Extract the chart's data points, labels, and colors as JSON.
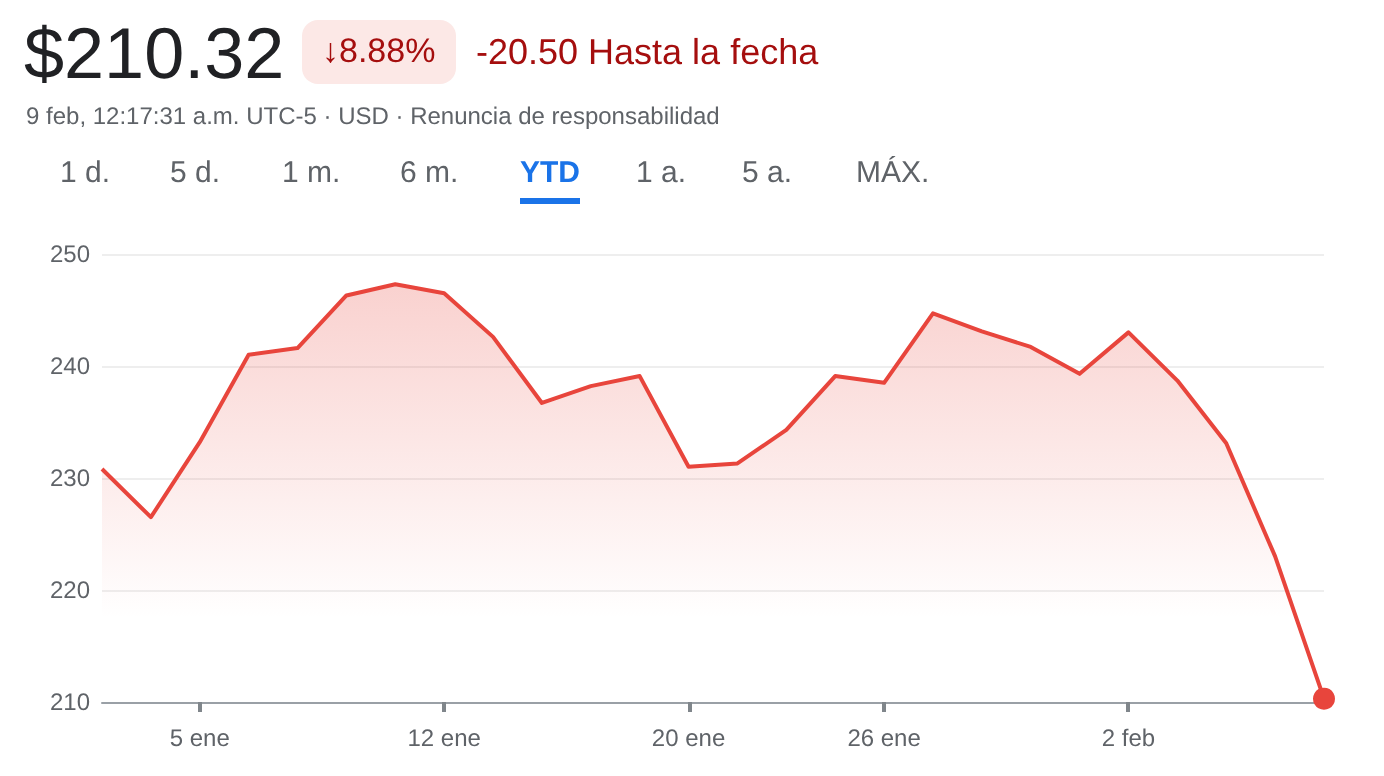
{
  "chart_data": {
    "type": "area",
    "title": "$210.32",
    "subtitle": "9 feb, 12:17:31 a.m. UTC-5 · USD · Renuncia de responsabilidad",
    "annotations": [
      "↓8.88%",
      "-20.50 Hasta la fecha",
      "1 d.",
      "5 d.",
      "1 m.",
      "6 m.",
      "YTD",
      "1 a.",
      "5 a.",
      "MÁX."
    ],
    "categories": [
      null,
      null,
      "5 ene",
      null,
      null,
      null,
      null,
      "12 ene",
      null,
      null,
      null,
      null,
      "20 ene",
      null,
      null,
      null,
      "26 ene",
      null,
      null,
      null,
      null,
      "2 feb",
      null,
      null,
      null,
      null
    ],
    "series": [
      {
        "color": "#e8453c",
        "values": [
          230.8,
          226.5,
          233.2,
          241.0,
          241.6,
          246.3,
          247.3,
          246.5,
          242.6,
          236.7,
          238.2,
          239.1,
          231.0,
          231.3,
          234.3,
          239.1,
          238.5,
          244.7,
          243.1,
          241.7,
          239.3,
          243.0,
          238.7,
          233.1,
          223.0,
          210.3
        ]
      }
    ],
    "ylim": [
      210,
      250
    ],
    "yticks": [
      210,
      220,
      230,
      240,
      250
    ],
    "grid": "y",
    "marker": "none",
    "line_style": "solid"
  }
}
